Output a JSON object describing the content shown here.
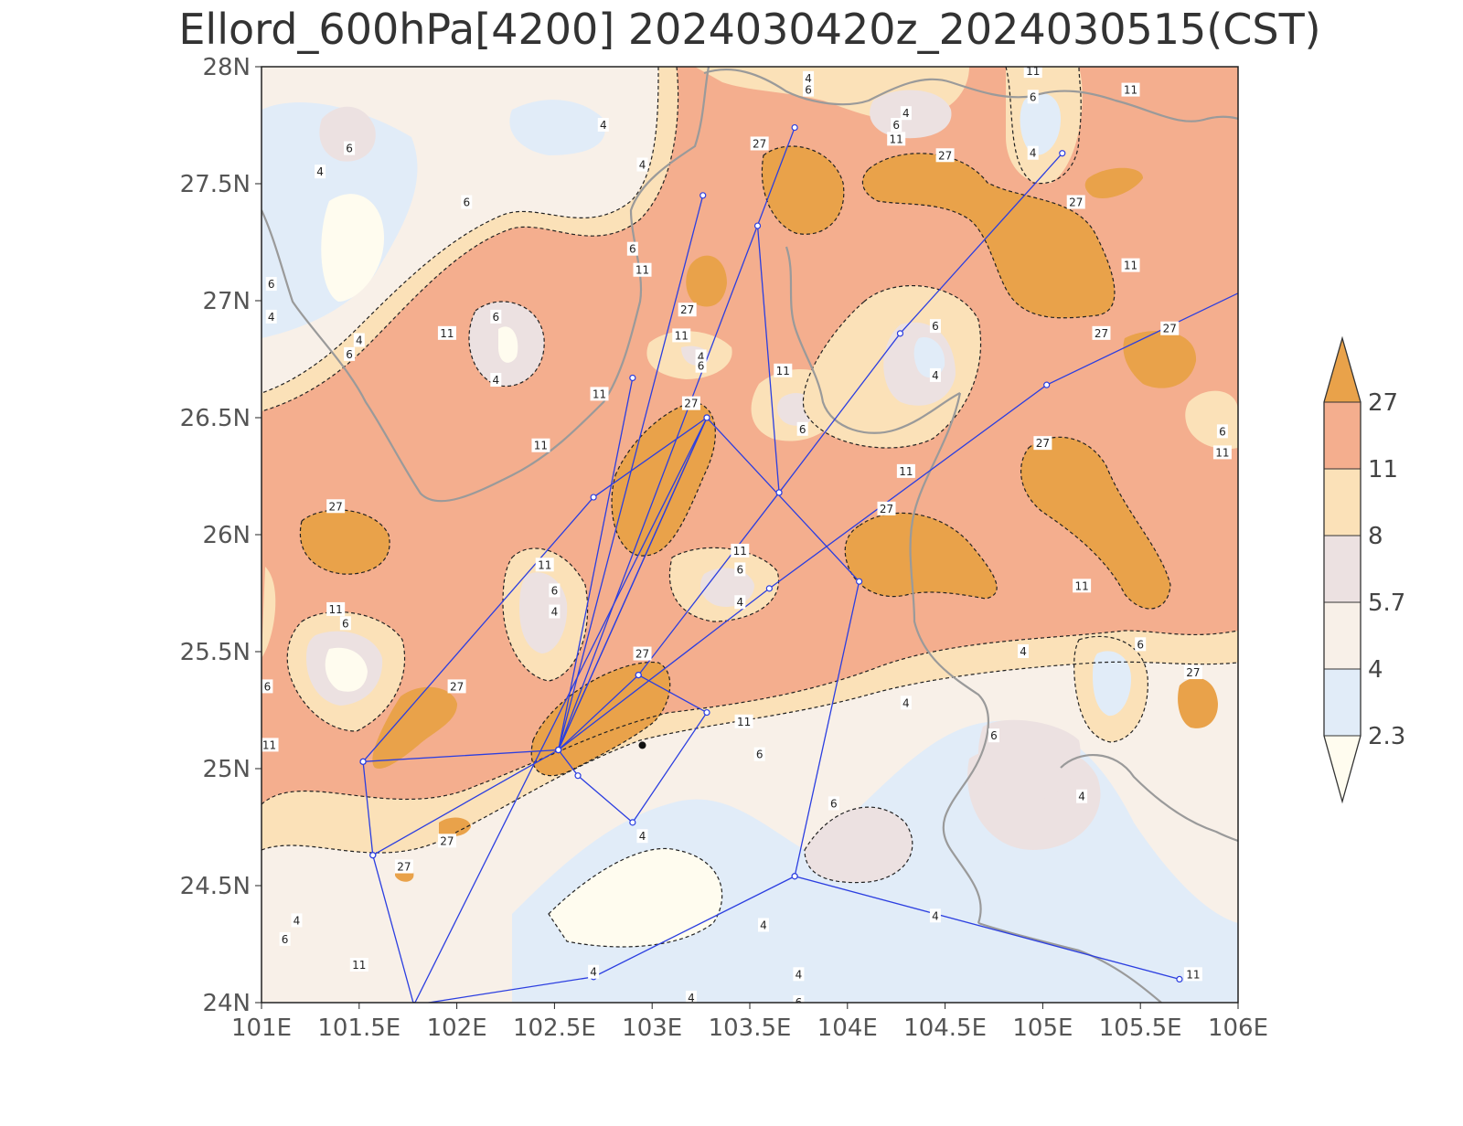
{
  "title": "Ellord_600hPa[4200] 2024030420z_2024030515(CST)",
  "colors": {
    "c27": "#e9a24a",
    "c11": "#f4ae8e",
    "c8": "#fbe1b8",
    "c57": "#ece1e1",
    "c4": "#f8f0e8",
    "c23": "#e1ecf8",
    "cmin": "#fffcef",
    "route": "#2b3ee0",
    "border": "#9a9a9a"
  },
  "axes": {
    "x_ticks": [
      "101E",
      "101.5E",
      "102E",
      "102.5E",
      "103E",
      "103.5E",
      "104E",
      "104.5E",
      "105E",
      "105.5E",
      "106E"
    ],
    "y_ticks": [
      "28N",
      "27.5N",
      "27N",
      "26.5N",
      "26N",
      "25.5N",
      "25N",
      "24.5N",
      "24N"
    ],
    "xlim": [
      101,
      106
    ],
    "ylim": [
      24,
      28
    ]
  },
  "colorbar": {
    "levels": [
      "27",
      "11",
      "8",
      "5.7",
      "4",
      "2.3"
    ]
  },
  "contour_labels": [
    {
      "text": "4",
      "lon": 101.3,
      "lat": 27.55
    },
    {
      "text": "6",
      "lon": 101.45,
      "lat": 27.65
    },
    {
      "text": "4",
      "lon": 102.75,
      "lat": 27.75
    },
    {
      "text": "6",
      "lon": 102.05,
      "lat": 27.42
    },
    {
      "text": "4",
      "lon": 102.95,
      "lat": 27.58
    },
    {
      "text": "6",
      "lon": 102.9,
      "lat": 27.22
    },
    {
      "text": "11",
      "lon": 102.95,
      "lat": 27.13
    },
    {
      "text": "4",
      "lon": 103.8,
      "lat": 27.95
    },
    {
      "text": "6",
      "lon": 103.8,
      "lat": 27.9
    },
    {
      "text": "27",
      "lon": 103.55,
      "lat": 27.67
    },
    {
      "text": "4",
      "lon": 104.3,
      "lat": 27.8
    },
    {
      "text": "6",
      "lon": 104.25,
      "lat": 27.75
    },
    {
      "text": "11",
      "lon": 104.25,
      "lat": 27.69
    },
    {
      "text": "27",
      "lon": 104.5,
      "lat": 27.62
    },
    {
      "text": "11",
      "lon": 104.95,
      "lat": 27.98
    },
    {
      "text": "6",
      "lon": 104.95,
      "lat": 27.87
    },
    {
      "text": "4",
      "lon": 104.95,
      "lat": 27.63
    },
    {
      "text": "11",
      "lon": 105.45,
      "lat": 27.9
    },
    {
      "text": "27",
      "lon": 105.17,
      "lat": 27.42
    },
    {
      "text": "11",
      "lon": 105.45,
      "lat": 27.15
    },
    {
      "text": "6",
      "lon": 101.05,
      "lat": 27.07
    },
    {
      "text": "4",
      "lon": 101.05,
      "lat": 26.93
    },
    {
      "text": "4",
      "lon": 101.5,
      "lat": 26.83
    },
    {
      "text": "6",
      "lon": 101.45,
      "lat": 26.77
    },
    {
      "text": "11",
      "lon": 101.95,
      "lat": 26.86
    },
    {
      "text": "6",
      "lon": 102.2,
      "lat": 26.93
    },
    {
      "text": "4",
      "lon": 102.2,
      "lat": 26.66
    },
    {
      "text": "27",
      "lon": 103.18,
      "lat": 26.96
    },
    {
      "text": "11",
      "lon": 103.15,
      "lat": 26.85
    },
    {
      "text": "4",
      "lon": 103.25,
      "lat": 26.76
    },
    {
      "text": "6",
      "lon": 103.25,
      "lat": 26.72
    },
    {
      "text": "11",
      "lon": 102.73,
      "lat": 26.6
    },
    {
      "text": "27",
      "lon": 103.2,
      "lat": 26.56
    },
    {
      "text": "11",
      "lon": 103.67,
      "lat": 26.7
    },
    {
      "text": "6",
      "lon": 103.77,
      "lat": 26.45
    },
    {
      "text": "6",
      "lon": 104.45,
      "lat": 26.89
    },
    {
      "text": "4",
      "lon": 104.45,
      "lat": 26.68
    },
    {
      "text": "11",
      "lon": 104.3,
      "lat": 26.27
    },
    {
      "text": "27",
      "lon": 104.2,
      "lat": 26.11
    },
    {
      "text": "27",
      "lon": 105.0,
      "lat": 26.39
    },
    {
      "text": "27",
      "lon": 105.3,
      "lat": 26.86
    },
    {
      "text": "27",
      "lon": 105.65,
      "lat": 26.88
    },
    {
      "text": "6",
      "lon": 105.92,
      "lat": 26.44
    },
    {
      "text": "11",
      "lon": 105.92,
      "lat": 26.35
    },
    {
      "text": "27",
      "lon": 101.38,
      "lat": 26.12
    },
    {
      "text": "11",
      "lon": 102.43,
      "lat": 26.38
    },
    {
      "text": "11",
      "lon": 102.45,
      "lat": 25.87
    },
    {
      "text": "6",
      "lon": 102.5,
      "lat": 25.76
    },
    {
      "text": "4",
      "lon": 102.5,
      "lat": 25.67
    },
    {
      "text": "11",
      "lon": 103.45,
      "lat": 25.93
    },
    {
      "text": "6",
      "lon": 103.45,
      "lat": 25.85
    },
    {
      "text": "4",
      "lon": 103.45,
      "lat": 25.71
    },
    {
      "text": "11",
      "lon": 101.38,
      "lat": 25.68
    },
    {
      "text": "6",
      "lon": 101.43,
      "lat": 25.62
    },
    {
      "text": "11",
      "lon": 105.2,
      "lat": 25.78
    },
    {
      "text": "4",
      "lon": 104.9,
      "lat": 25.5
    },
    {
      "text": "6",
      "lon": 105.5,
      "lat": 25.53
    },
    {
      "text": "27",
      "lon": 105.77,
      "lat": 25.41
    },
    {
      "text": "27",
      "lon": 102.0,
      "lat": 25.35
    },
    {
      "text": "6",
      "lon": 101.03,
      "lat": 25.35
    },
    {
      "text": "27",
      "lon": 102.95,
      "lat": 25.49
    },
    {
      "text": "11",
      "lon": 103.47,
      "lat": 25.2
    },
    {
      "text": "6",
      "lon": 103.55,
      "lat": 25.06
    },
    {
      "text": "4",
      "lon": 104.3,
      "lat": 25.28
    },
    {
      "text": "6",
      "lon": 104.75,
      "lat": 25.14
    },
    {
      "text": "4",
      "lon": 105.2,
      "lat": 24.88
    },
    {
      "text": "11",
      "lon": 101.04,
      "lat": 25.1
    },
    {
      "text": "27",
      "lon": 101.95,
      "lat": 24.69
    },
    {
      "text": "4",
      "lon": 102.95,
      "lat": 24.71
    },
    {
      "text": "6",
      "lon": 103.93,
      "lat": 24.85
    },
    {
      "text": "27",
      "lon": 101.73,
      "lat": 24.58
    },
    {
      "text": "4",
      "lon": 101.18,
      "lat": 24.35
    },
    {
      "text": "6",
      "lon": 101.12,
      "lat": 24.27
    },
    {
      "text": "11",
      "lon": 101.5,
      "lat": 24.16
    },
    {
      "text": "4",
      "lon": 103.57,
      "lat": 24.33
    },
    {
      "text": "4",
      "lon": 104.45,
      "lat": 24.37
    },
    {
      "text": "4",
      "lon": 102.7,
      "lat": 24.13
    },
    {
      "text": "4",
      "lon": 103.75,
      "lat": 24.12
    },
    {
      "text": "4",
      "lon": 103.2,
      "lat": 24.02
    },
    {
      "text": "6",
      "lon": 103.75,
      "lat": 24.0
    },
    {
      "text": "11",
      "lon": 105.77,
      "lat": 24.12
    }
  ],
  "routes": [
    [
      [
        101.52,
        25.03
      ],
      [
        102.52,
        25.08
      ],
      [
        103.28,
        26.5
      ],
      [
        104.06,
        25.8
      ],
      [
        103.73,
        24.54
      ],
      [
        105.7,
        24.1
      ]
    ],
    [
      [
        101.52,
        25.03
      ],
      [
        101.57,
        24.63
      ],
      [
        101.78,
        23.99
      ],
      [
        102.7,
        24.11
      ],
      [
        103.73,
        24.54
      ]
    ],
    [
      [
        101.57,
        24.63
      ],
      [
        102.52,
        25.08
      ],
      [
        103.6,
        25.77
      ],
      [
        105.02,
        26.64
      ],
      [
        106.02,
        27.04
      ]
    ],
    [
      [
        101.52,
        25.03
      ],
      [
        102.7,
        26.16
      ],
      [
        103.28,
        26.5
      ],
      [
        102.52,
        25.08
      ],
      [
        103.73,
        27.74
      ]
    ],
    [
      [
        102.52,
        25.08
      ],
      [
        103.26,
        27.45
      ]
    ],
    [
      [
        102.52,
        25.08
      ],
      [
        102.9,
        26.67
      ]
    ],
    [
      [
        102.52,
        25.08
      ],
      [
        102.93,
        25.4
      ],
      [
        103.65,
        26.18
      ],
      [
        104.27,
        26.86
      ],
      [
        105.1,
        27.63
      ]
    ],
    [
      [
        101.78,
        23.99
      ],
      [
        103.28,
        26.5
      ]
    ],
    [
      [
        102.52,
        25.08
      ],
      [
        102.62,
        24.97
      ],
      [
        102.9,
        24.77
      ],
      [
        103.28,
        25.24
      ],
      [
        102.93,
        25.4
      ]
    ],
    [
      [
        103.65,
        26.18
      ],
      [
        103.54,
        27.32
      ]
    ]
  ],
  "station": {
    "lon": 102.95,
    "lat": 25.1
  }
}
